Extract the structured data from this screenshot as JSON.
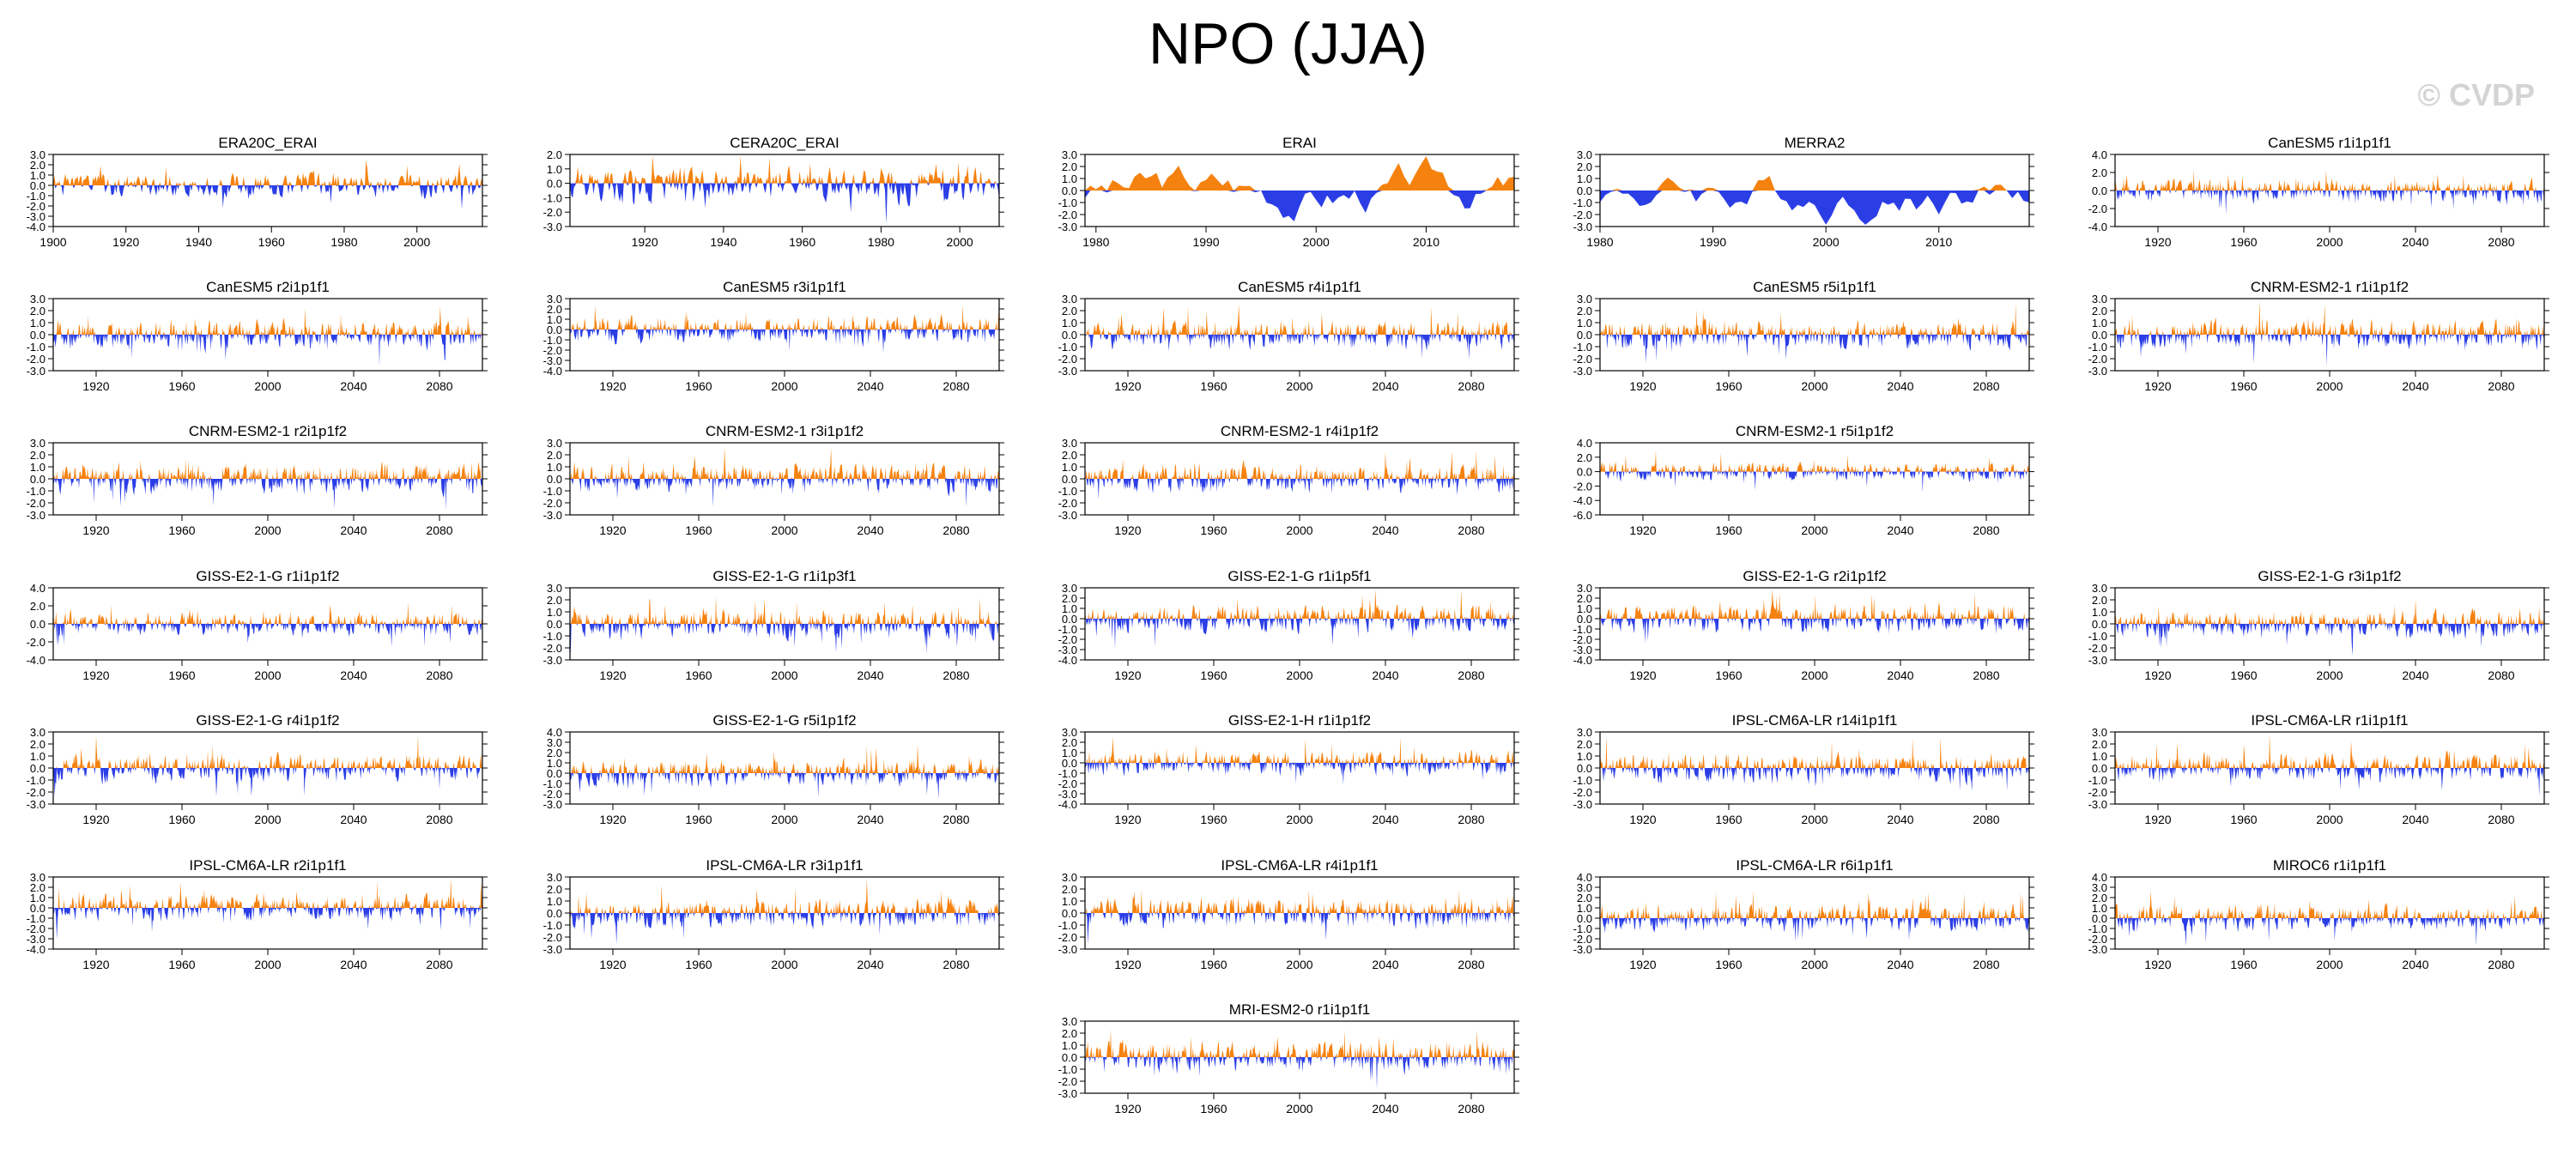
{
  "title": "NPO (JJA)",
  "watermark": "© CVDP",
  "colors": {
    "positive": "#f5820f",
    "negative": "#2b3ee6",
    "axis": "#000000"
  },
  "chart_data": [
    {
      "type": "area",
      "title": "ERA20C_ERAI",
      "x": [
        1900,
        2018
      ],
      "seed": 1,
      "amp": 1.3,
      "ylim": [
        -4.0,
        3.0
      ],
      "ytick_step": 1.0,
      "xticks": [
        1900,
        1920,
        1940,
        1960,
        1980,
        2000
      ],
      "ytick_labels": [
        "3.0",
        "2.0",
        "1.0",
        "0.0",
        "-1.0",
        "-2.0",
        "-3.0",
        "-4.0"
      ]
    },
    {
      "type": "area",
      "title": "CERA20C_ERAI",
      "x": [
        1901,
        2010
      ],
      "seed": 2,
      "amp": 1.4,
      "ylim": [
        -3.0,
        2.0
      ],
      "ytick_step": 1.0,
      "xticks": [
        1920,
        1940,
        1960,
        1980,
        2000
      ],
      "ytick_labels": [
        "2.0",
        "1.0",
        "0.0",
        "-1.0",
        "-2.0",
        "-3.0"
      ]
    },
    {
      "type": "area",
      "title": "ERAI",
      "x": [
        1979,
        2018
      ],
      "seed": 3,
      "amp": 1.5,
      "smooth": true,
      "ylim": [
        -3.0,
        3.0
      ],
      "ytick_step": 1.0,
      "xticks": [
        1980,
        1990,
        2000,
        2010
      ],
      "ytick_labels": [
        "3.0",
        "2.0",
        "1.0",
        "0.0",
        "-1.0",
        "-2.0",
        "-3.0"
      ]
    },
    {
      "type": "area",
      "title": "MERRA2",
      "x": [
        1980,
        2018
      ],
      "seed": 4,
      "amp": 1.5,
      "smooth": true,
      "ylim": [
        -3.0,
        3.0
      ],
      "ytick_step": 1.0,
      "xticks": [
        1980,
        1990,
        2000,
        2010
      ],
      "ytick_labels": [
        "3.0",
        "2.0",
        "1.0",
        "0.0",
        "-1.0",
        "-2.0",
        "-3.0"
      ]
    },
    {
      "type": "area",
      "title": "CanESM5 r1i1p1f1",
      "x": [
        1900,
        2100
      ],
      "seed": 5,
      "amp": 1.3,
      "ylim": [
        -4.0,
        4.0
      ],
      "ytick_step": 2.0,
      "xticks": [
        1920,
        1960,
        2000,
        2040,
        2080
      ],
      "ytick_labels": [
        "4.0",
        "2.0",
        "0.0",
        "-2.0",
        "-4.0"
      ]
    },
    {
      "type": "area",
      "title": "CanESM5 r2i1p1f1",
      "x": [
        1900,
        2100
      ],
      "seed": 6,
      "amp": 1.2,
      "ylim": [
        -3.0,
        3.0
      ],
      "ytick_step": 1.0,
      "xticks": [
        1920,
        1960,
        2000,
        2040,
        2080
      ],
      "ytick_labels": [
        "3.0",
        "2.0",
        "1.0",
        "0.0",
        "-1.0",
        "-2.0",
        "-3.0"
      ]
    },
    {
      "type": "area",
      "title": "CanESM5 r3i1p1f1",
      "x": [
        1900,
        2100
      ],
      "seed": 7,
      "amp": 1.3,
      "ylim": [
        -4.0,
        3.0
      ],
      "ytick_step": 1.0,
      "xticks": [
        1920,
        1960,
        2000,
        2040,
        2080
      ],
      "ytick_labels": [
        "3.0",
        "2.0",
        "1.0",
        "0.0",
        "-1.0",
        "-2.0",
        "-3.0",
        "-4.0"
      ]
    },
    {
      "type": "area",
      "title": "CanESM5 r4i1p1f1",
      "x": [
        1900,
        2100
      ],
      "seed": 8,
      "amp": 1.2,
      "ylim": [
        -3.0,
        3.0
      ],
      "ytick_step": 1.0,
      "xticks": [
        1920,
        1960,
        2000,
        2040,
        2080
      ],
      "ytick_labels": [
        "3.0",
        "2.0",
        "1.0",
        "0.0",
        "-1.0",
        "-2.0",
        "-3.0"
      ]
    },
    {
      "type": "area",
      "title": "CanESM5 r5i1p1f1",
      "x": [
        1900,
        2100
      ],
      "seed": 9,
      "amp": 1.2,
      "ylim": [
        -3.0,
        3.0
      ],
      "ytick_step": 1.0,
      "xticks": [
        1920,
        1960,
        2000,
        2040,
        2080
      ],
      "ytick_labels": [
        "3.0",
        "2.0",
        "1.0",
        "0.0",
        "-1.0",
        "-2.0",
        "-3.0"
      ]
    },
    {
      "type": "area",
      "title": "CNRM-ESM2-1 r1i1p1f2",
      "x": [
        1900,
        2100
      ],
      "seed": 10,
      "amp": 1.2,
      "ylim": [
        -3.0,
        3.0
      ],
      "ytick_step": 1.0,
      "xticks": [
        1920,
        1960,
        2000,
        2040,
        2080
      ],
      "ytick_labels": [
        "3.0",
        "2.0",
        "1.0",
        "0.0",
        "-1.0",
        "-2.0",
        "-3.0"
      ]
    },
    {
      "type": "area",
      "title": "CNRM-ESM2-1 r2i1p1f2",
      "x": [
        1900,
        2100
      ],
      "seed": 11,
      "amp": 1.3,
      "ylim": [
        -3.0,
        3.0
      ],
      "ytick_step": 1.0,
      "xticks": [
        1920,
        1960,
        2000,
        2040,
        2080
      ],
      "ytick_labels": [
        "3.0",
        "2.0",
        "1.0",
        "0.0",
        "-1.0",
        "-2.0",
        "-3.0"
      ]
    },
    {
      "type": "area",
      "title": "CNRM-ESM2-1 r3i1p1f2",
      "x": [
        1900,
        2100
      ],
      "seed": 12,
      "amp": 1.2,
      "ylim": [
        -3.0,
        3.0
      ],
      "ytick_step": 1.0,
      "xticks": [
        1920,
        1960,
        2000,
        2040,
        2080
      ],
      "ytick_labels": [
        "3.0",
        "2.0",
        "1.0",
        "0.0",
        "-1.0",
        "-2.0",
        "-3.0"
      ]
    },
    {
      "type": "area",
      "title": "CNRM-ESM2-1 r4i1p1f2",
      "x": [
        1900,
        2100
      ],
      "seed": 13,
      "amp": 1.2,
      "ylim": [
        -3.0,
        3.0
      ],
      "ytick_step": 1.0,
      "xticks": [
        1920,
        1960,
        2000,
        2040,
        2080
      ],
      "ytick_labels": [
        "3.0",
        "2.0",
        "1.0",
        "0.0",
        "-1.0",
        "-2.0",
        "-3.0"
      ]
    },
    {
      "type": "area",
      "title": "CNRM-ESM2-1 r5i1p1f2",
      "x": [
        1900,
        2100
      ],
      "seed": 14,
      "amp": 1.3,
      "ylim": [
        -6.0,
        4.0
      ],
      "ytick_step": 2.0,
      "xticks": [
        1920,
        1960,
        2000,
        2040,
        2080
      ],
      "ytick_labels": [
        "4.0",
        "2.0",
        "0.0",
        "-2.0",
        "-4.0",
        "-6.0"
      ]
    },
    null,
    {
      "type": "area",
      "title": "GISS-E2-1-G r1i1p1f2",
      "x": [
        1900,
        2100
      ],
      "seed": 15,
      "amp": 1.3,
      "ylim": [
        -4.0,
        4.0
      ],
      "ytick_step": 2.0,
      "xticks": [
        1920,
        1960,
        2000,
        2040,
        2080
      ],
      "ytick_labels": [
        "4.0",
        "2.0",
        "0.0",
        "-2.0",
        "-4.0"
      ]
    },
    {
      "type": "area",
      "title": "GISS-E2-1-G r1i1p3f1",
      "x": [
        1900,
        2100
      ],
      "seed": 16,
      "amp": 1.2,
      "ylim": [
        -3.0,
        3.0
      ],
      "ytick_step": 1.0,
      "xticks": [
        1920,
        1960,
        2000,
        2040,
        2080
      ],
      "ytick_labels": [
        "3.0",
        "2.0",
        "1.0",
        "0.0",
        "-1.0",
        "-2.0",
        "-3.0"
      ]
    },
    {
      "type": "area",
      "title": "GISS-E2-1-G r1i1p5f1",
      "x": [
        1900,
        2100
      ],
      "seed": 17,
      "amp": 1.3,
      "ylim": [
        -4.0,
        3.0
      ],
      "ytick_step": 1.0,
      "xticks": [
        1920,
        1960,
        2000,
        2040,
        2080
      ],
      "ytick_labels": [
        "3.0",
        "2.0",
        "1.0",
        "0.0",
        "-1.0",
        "-2.0",
        "-3.0",
        "-4.0"
      ]
    },
    {
      "type": "area",
      "title": "GISS-E2-1-G r2i1p1f2",
      "x": [
        1900,
        2100
      ],
      "seed": 18,
      "amp": 1.3,
      "ylim": [
        -4.0,
        3.0
      ],
      "ytick_step": 1.0,
      "xticks": [
        1920,
        1960,
        2000,
        2040,
        2080
      ],
      "ytick_labels": [
        "3.0",
        "2.0",
        "1.0",
        "0.0",
        "-1.0",
        "-2.0",
        "-3.0",
        "-4.0"
      ]
    },
    {
      "type": "area",
      "title": "GISS-E2-1-G r3i1p1f2",
      "x": [
        1900,
        2100
      ],
      "seed": 19,
      "amp": 1.2,
      "ylim": [
        -3.0,
        3.0
      ],
      "ytick_step": 1.0,
      "xticks": [
        1920,
        1960,
        2000,
        2040,
        2080
      ],
      "ytick_labels": [
        "3.0",
        "2.0",
        "1.0",
        "0.0",
        "-1.0",
        "-2.0",
        "-3.0"
      ]
    },
    {
      "type": "area",
      "title": "GISS-E2-1-G r4i1p1f2",
      "x": [
        1900,
        2100
      ],
      "seed": 20,
      "amp": 1.2,
      "ylim": [
        -3.0,
        3.0
      ],
      "ytick_step": 1.0,
      "xticks": [
        1920,
        1960,
        2000,
        2040,
        2080
      ],
      "ytick_labels": [
        "3.0",
        "2.0",
        "1.0",
        "0.0",
        "-1.0",
        "-2.0",
        "-3.0"
      ]
    },
    {
      "type": "area",
      "title": "GISS-E2-1-G r5i1p1f2",
      "x": [
        1900,
        2100
      ],
      "seed": 21,
      "amp": 1.3,
      "ylim": [
        -3.0,
        4.0
      ],
      "ytick_step": 1.0,
      "xticks": [
        1920,
        1960,
        2000,
        2040,
        2080
      ],
      "ytick_labels": [
        "4.0",
        "3.0",
        "2.0",
        "1.0",
        "0.0",
        "-1.0",
        "-2.0",
        "-3.0"
      ]
    },
    {
      "type": "area",
      "title": "GISS-E2-1-H r1i1p1f2",
      "x": [
        1900,
        2100
      ],
      "seed": 22,
      "amp": 1.2,
      "ylim": [
        -4.0,
        3.0
      ],
      "ytick_step": 1.0,
      "xticks": [
        1920,
        1960,
        2000,
        2040,
        2080
      ],
      "ytick_labels": [
        "3.0",
        "2.0",
        "1.0",
        "0.0",
        "-1.0",
        "-2.0",
        "-3.0",
        "-4.0"
      ]
    },
    {
      "type": "area",
      "title": "IPSL-CM6A-LR r14i1p1f1",
      "x": [
        1900,
        2100
      ],
      "seed": 23,
      "amp": 1.3,
      "ylim": [
        -3.0,
        3.0
      ],
      "ytick_step": 1.0,
      "xticks": [
        1920,
        1960,
        2000,
        2040,
        2080
      ],
      "ytick_labels": [
        "3.0",
        "2.0",
        "1.0",
        "0.0",
        "-1.0",
        "-2.0",
        "-3.0"
      ]
    },
    {
      "type": "area",
      "title": "IPSL-CM6A-LR r1i1p1f1",
      "x": [
        1900,
        2100
      ],
      "seed": 24,
      "amp": 1.2,
      "ylim": [
        -3.0,
        3.0
      ],
      "ytick_step": 1.0,
      "xticks": [
        1920,
        1960,
        2000,
        2040,
        2080
      ],
      "ytick_labels": [
        "3.0",
        "2.0",
        "1.0",
        "0.0",
        "-1.0",
        "-2.0",
        "-3.0"
      ]
    },
    {
      "type": "area",
      "title": "IPSL-CM6A-LR r2i1p1f1",
      "x": [
        1900,
        2100
      ],
      "seed": 25,
      "amp": 1.3,
      "ylim": [
        -4.0,
        3.0
      ],
      "ytick_step": 1.0,
      "xticks": [
        1920,
        1960,
        2000,
        2040,
        2080
      ],
      "ytick_labels": [
        "3.0",
        "2.0",
        "1.0",
        "0.0",
        "-1.0",
        "-2.0",
        "-3.0",
        "-4.0"
      ]
    },
    {
      "type": "area",
      "title": "IPSL-CM6A-LR r3i1p1f1",
      "x": [
        1900,
        2100
      ],
      "seed": 26,
      "amp": 1.2,
      "ylim": [
        -3.0,
        3.0
      ],
      "ytick_step": 1.0,
      "xticks": [
        1920,
        1960,
        2000,
        2040,
        2080
      ],
      "ytick_labels": [
        "3.0",
        "2.0",
        "1.0",
        "0.0",
        "-1.0",
        "-2.0",
        "-3.0"
      ]
    },
    {
      "type": "area",
      "title": "IPSL-CM6A-LR r4i1p1f1",
      "x": [
        1900,
        2100
      ],
      "seed": 27,
      "amp": 1.2,
      "ylim": [
        -3.0,
        3.0
      ],
      "ytick_step": 1.0,
      "xticks": [
        1920,
        1960,
        2000,
        2040,
        2080
      ],
      "ytick_labels": [
        "3.0",
        "2.0",
        "1.0",
        "0.0",
        "-1.0",
        "-2.0",
        "-3.0"
      ]
    },
    {
      "type": "area",
      "title": "IPSL-CM6A-LR r6i1p1f1",
      "x": [
        1900,
        2100
      ],
      "seed": 28,
      "amp": 1.3,
      "ylim": [
        -3.0,
        4.0
      ],
      "ytick_step": 1.0,
      "xticks": [
        1920,
        1960,
        2000,
        2040,
        2080
      ],
      "ytick_labels": [
        "4.0",
        "3.0",
        "2.0",
        "1.0",
        "0.0",
        "-1.0",
        "-2.0",
        "-3.0"
      ]
    },
    {
      "type": "area",
      "title": "MIROC6 r1i1p1f1",
      "x": [
        1900,
        2100
      ],
      "seed": 29,
      "amp": 1.3,
      "ylim": [
        -3.0,
        4.0
      ],
      "ytick_step": 1.0,
      "xticks": [
        1920,
        1960,
        2000,
        2040,
        2080
      ],
      "ytick_labels": [
        "4.0",
        "3.0",
        "2.0",
        "1.0",
        "0.0",
        "-1.0",
        "-2.0",
        "-3.0"
      ]
    },
    null,
    null,
    {
      "type": "area",
      "title": "MRI-ESM2-0 r1i1p1f1",
      "x": [
        1900,
        2100
      ],
      "seed": 30,
      "amp": 1.3,
      "ylim": [
        -3.0,
        3.0
      ],
      "ytick_step": 1.0,
      "xticks": [
        1920,
        1960,
        2000,
        2040,
        2080
      ],
      "ytick_labels": [
        "3.0",
        "2.0",
        "1.0",
        "0.0",
        "-1.0",
        "-2.0",
        "-3.0"
      ]
    },
    null,
    null
  ]
}
